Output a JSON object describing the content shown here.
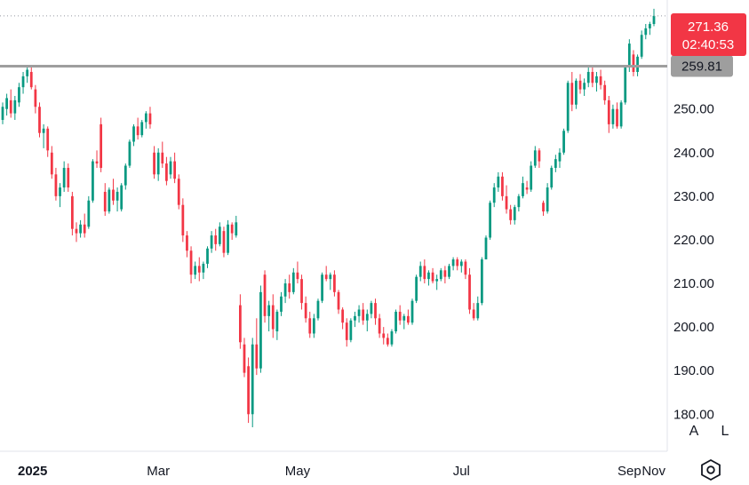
{
  "chart_data": {
    "type": "candlestick",
    "y_axis": {
      "ticks": [
        "180.00",
        "190.00",
        "200.00",
        "210.00",
        "220.00",
        "230.00",
        "240.00",
        "250.00"
      ],
      "ylim": [
        171.5,
        275
      ],
      "position": "right"
    },
    "x_axis": {
      "ticks": [
        "2025",
        "Mar",
        "May",
        "Jul",
        "Sep",
        "Nov"
      ]
    },
    "last_price": {
      "value": "271.36",
      "countdown": "02:40:53",
      "color": "#f23645"
    },
    "horizontal_line": {
      "value": "259.81",
      "color": "#9e9e9e"
    },
    "colors": {
      "up": "#089981",
      "down": "#f23645"
    },
    "ohlc": [
      [
        247.5,
        251.5,
        246.5,
        250.5
      ],
      [
        250.0,
        253.5,
        248.5,
        252.5
      ],
      [
        252.0,
        254.5,
        248.0,
        249.0
      ],
      [
        249.0,
        253.0,
        247.5,
        252.0
      ],
      [
        251.5,
        256.0,
        250.5,
        255.0
      ],
      [
        255.0,
        258.5,
        253.5,
        257.5
      ],
      [
        257.5,
        260.0,
        256.0,
        259.0
      ],
      [
        258.5,
        260.0,
        254.5,
        255.0
      ],
      [
        254.5,
        255.5,
        249.0,
        250.5
      ],
      [
        250.5,
        251.5,
        243.5,
        244.5
      ],
      [
        244.5,
        246.5,
        241.0,
        245.5
      ],
      [
        245.5,
        246.0,
        239.0,
        240.5
      ],
      [
        240.0,
        241.5,
        234.0,
        235.0
      ],
      [
        235.0,
        236.5,
        229.0,
        230.0
      ],
      [
        230.0,
        233.0,
        227.5,
        232.0
      ],
      [
        232.0,
        238.0,
        231.0,
        236.5
      ],
      [
        236.5,
        237.5,
        231.0,
        232.0
      ],
      [
        230.0,
        231.0,
        221.0,
        222.5
      ],
      [
        222.5,
        224.0,
        219.5,
        221.5
      ],
      [
        221.5,
        224.5,
        220.5,
        223.5
      ],
      [
        223.5,
        226.0,
        220.5,
        221.5
      ],
      [
        223.0,
        230.0,
        222.5,
        229.0
      ],
      [
        229.0,
        238.5,
        228.5,
        238.0
      ],
      [
        238.0,
        240.5,
        236.5,
        237.5
      ],
      [
        246.5,
        248.0,
        235.5,
        236.5
      ],
      [
        231.0,
        233.0,
        225.5,
        226.5
      ],
      [
        226.5,
        232.0,
        226.0,
        231.5
      ],
      [
        231.5,
        234.0,
        228.0,
        229.0
      ],
      [
        229.0,
        232.0,
        226.5,
        231.0
      ],
      [
        227.0,
        233.0,
        226.5,
        232.5
      ],
      [
        232.5,
        237.5,
        231.5,
        237.0
      ],
      [
        237.0,
        243.0,
        236.5,
        242.5
      ],
      [
        242.5,
        246.5,
        241.5,
        246.0
      ],
      [
        246.0,
        248.0,
        243.0,
        244.0
      ],
      [
        244.0,
        247.5,
        243.5,
        247.0
      ],
      [
        247.0,
        249.5,
        245.5,
        249.0
      ],
      [
        249.0,
        250.5,
        245.5,
        246.5
      ],
      [
        240.0,
        241.5,
        234.0,
        235.0
      ],
      [
        235.0,
        241.0,
        233.5,
        240.0
      ],
      [
        240.0,
        242.5,
        236.5,
        237.5
      ],
      [
        237.5,
        239.0,
        232.5,
        233.5
      ],
      [
        235.0,
        239.0,
        234.0,
        238.0
      ],
      [
        238.0,
        240.0,
        233.0,
        234.0
      ],
      [
        234.0,
        235.0,
        227.0,
        228.0
      ],
      [
        228.0,
        229.5,
        219.5,
        221.0
      ],
      [
        221.0,
        222.0,
        216.0,
        217.5
      ],
      [
        217.5,
        218.5,
        210.0,
        212.0
      ],
      [
        212.0,
        215.0,
        211.0,
        214.0
      ],
      [
        214.0,
        216.0,
        210.5,
        212.5
      ],
      [
        212.5,
        215.0,
        211.0,
        214.5
      ],
      [
        214.5,
        218.5,
        213.5,
        218.0
      ],
      [
        218.0,
        222.0,
        217.0,
        221.0
      ],
      [
        221.0,
        222.5,
        217.5,
        219.0
      ],
      [
        219.0,
        224.0,
        218.5,
        223.0
      ],
      [
        222.0,
        223.0,
        216.0,
        217.0
      ],
      [
        217.0,
        224.5,
        216.5,
        223.5
      ],
      [
        223.5,
        224.0,
        220.0,
        221.5
      ],
      [
        221.0,
        225.5,
        220.5,
        224.0
      ],
      [
        205.0,
        207.5,
        195.0,
        196.5
      ],
      [
        196.0,
        197.5,
        188.5,
        189.5
      ],
      [
        191.0,
        193.0,
        178.0,
        180.0
      ],
      [
        180.0,
        197.5,
        177.0,
        196.0
      ],
      [
        196.0,
        202.0,
        189.0,
        190.5
      ],
      [
        190.5,
        209.5,
        189.5,
        208.0
      ],
      [
        212.0,
        213.0,
        201.0,
        202.5
      ],
      [
        202.5,
        206.0,
        199.0,
        205.0
      ],
      [
        205.0,
        207.5,
        197.5,
        199.5
      ],
      [
        199.0,
        204.0,
        197.0,
        203.5
      ],
      [
        203.5,
        208.0,
        202.5,
        207.0
      ],
      [
        207.0,
        211.0,
        205.5,
        210.0
      ],
      [
        210.0,
        212.0,
        206.5,
        208.0
      ],
      [
        208.0,
        213.5,
        207.5,
        212.5
      ],
      [
        212.5,
        215.0,
        210.0,
        211.0
      ],
      [
        211.0,
        212.0,
        204.0,
        205.5
      ],
      [
        205.5,
        207.0,
        201.0,
        202.0
      ],
      [
        202.0,
        203.5,
        197.5,
        198.5
      ],
      [
        198.5,
        203.0,
        197.5,
        202.0
      ],
      [
        202.0,
        206.5,
        201.5,
        206.0
      ],
      [
        206.0,
        212.5,
        205.5,
        212.0
      ],
      [
        212.0,
        214.0,
        210.5,
        211.0
      ],
      [
        211.0,
        212.5,
        208.5,
        212.0
      ],
      [
        212.0,
        213.0,
        207.0,
        208.0
      ],
      [
        208.0,
        208.5,
        203.0,
        204.0
      ],
      [
        204.0,
        204.5,
        199.5,
        201.0
      ],
      [
        201.0,
        202.0,
        195.5,
        197.0
      ],
      [
        197.0,
        202.0,
        196.5,
        201.5
      ],
      [
        201.5,
        203.5,
        200.0,
        202.5
      ],
      [
        202.5,
        205.0,
        201.0,
        204.0
      ],
      [
        204.0,
        205.5,
        200.5,
        201.5
      ],
      [
        201.5,
        204.0,
        199.0,
        203.0
      ],
      [
        203.0,
        206.0,
        202.0,
        205.5
      ],
      [
        205.5,
        206.5,
        200.5,
        202.0
      ],
      [
        202.0,
        203.0,
        197.5,
        198.5
      ],
      [
        198.5,
        200.0,
        196.0,
        197.5
      ],
      [
        197.5,
        198.5,
        195.5,
        196.0
      ],
      [
        196.0,
        199.5,
        195.5,
        199.0
      ],
      [
        199.0,
        204.0,
        198.5,
        203.5
      ],
      [
        203.5,
        205.0,
        200.5,
        201.5
      ],
      [
        201.5,
        203.0,
        199.5,
        202.5
      ],
      [
        202.5,
        204.0,
        200.5,
        201.0
      ],
      [
        201.0,
        206.5,
        200.5,
        206.0
      ],
      [
        206.0,
        212.0,
        205.5,
        211.5
      ],
      [
        211.5,
        215.0,
        210.5,
        214.0
      ],
      [
        214.0,
        215.5,
        210.0,
        211.0
      ],
      [
        211.0,
        213.0,
        209.5,
        212.5
      ],
      [
        212.5,
        213.5,
        210.0,
        210.5
      ],
      [
        210.5,
        212.0,
        208.5,
        211.0
      ],
      [
        211.0,
        213.5,
        210.5,
        213.0
      ],
      [
        213.0,
        214.0,
        210.0,
        211.5
      ],
      [
        211.5,
        214.5,
        211.0,
        214.0
      ],
      [
        214.0,
        216.0,
        213.0,
        215.5
      ],
      [
        215.5,
        216.0,
        213.0,
        214.0
      ],
      [
        214.0,
        215.5,
        212.5,
        215.0
      ],
      [
        215.0,
        215.5,
        211.0,
        212.0
      ],
      [
        212.0,
        213.5,
        203.0,
        204.0
      ],
      [
        204.0,
        205.5,
        201.5,
        202.0
      ],
      [
        202.0,
        207.0,
        201.5,
        205.5
      ],
      [
        205.5,
        216.0,
        205.0,
        215.5
      ],
      [
        215.5,
        221.0,
        216.5,
        220.5
      ],
      [
        220.5,
        229.0,
        220.0,
        228.5
      ],
      [
        228.5,
        233.0,
        227.5,
        232.0
      ],
      [
        232.0,
        235.5,
        231.0,
        234.5
      ],
      [
        234.5,
        235.5,
        229.0,
        230.0
      ],
      [
        230.0,
        232.5,
        226.0,
        227.0
      ],
      [
        227.0,
        228.0,
        223.5,
        224.5
      ],
      [
        224.5,
        228.0,
        223.5,
        227.5
      ],
      [
        227.5,
        230.5,
        226.5,
        230.0
      ],
      [
        230.0,
        234.5,
        229.5,
        233.0
      ],
      [
        232.0,
        233.5,
        230.5,
        231.5
      ],
      [
        231.5,
        238.0,
        231.0,
        237.0
      ],
      [
        237.0,
        241.5,
        236.5,
        240.5
      ],
      [
        240.5,
        241.0,
        236.5,
        238.0
      ],
      [
        228.5,
        229.0,
        225.5,
        226.5
      ],
      [
        226.5,
        233.0,
        226.0,
        232.0
      ],
      [
        232.0,
        237.0,
        231.5,
        236.5
      ],
      [
        236.5,
        239.5,
        235.5,
        238.5
      ],
      [
        238.0,
        241.0,
        236.5,
        240.0
      ],
      [
        240.0,
        245.5,
        239.5,
        245.0
      ],
      [
        245.0,
        256.5,
        244.5,
        256.0
      ],
      [
        256.0,
        258.5,
        249.5,
        251.0
      ],
      [
        251.0,
        257.0,
        250.0,
        256.5
      ],
      [
        256.5,
        258.0,
        253.5,
        254.5
      ],
      [
        254.5,
        257.0,
        253.0,
        256.0
      ],
      [
        256.0,
        259.5,
        255.0,
        258.5
      ],
      [
        258.5,
        259.5,
        255.0,
        256.0
      ],
      [
        256.0,
        258.5,
        254.0,
        257.5
      ],
      [
        257.5,
        259.0,
        254.5,
        255.5
      ],
      [
        255.5,
        256.5,
        251.0,
        252.0
      ],
      [
        252.0,
        253.0,
        244.5,
        246.5
      ],
      [
        246.5,
        251.0,
        245.5,
        250.0
      ],
      [
        250.0,
        251.5,
        245.5,
        246.0
      ],
      [
        246.0,
        252.0,
        245.5,
        251.5
      ],
      [
        251.5,
        260.0,
        251.0,
        259.5
      ],
      [
        259.5,
        266.0,
        258.5,
        265.0
      ],
      [
        262.5,
        263.5,
        257.5,
        258.5
      ],
      [
        258.5,
        262.5,
        257.5,
        262.0
      ],
      [
        262.0,
        268.0,
        261.5,
        267.0
      ],
      [
        267.0,
        269.5,
        266.0,
        268.5
      ],
      [
        268.5,
        270.0,
        267.0,
        269.5
      ],
      [
        269.5,
        273.0,
        269.0,
        271.36
      ]
    ]
  }
}
